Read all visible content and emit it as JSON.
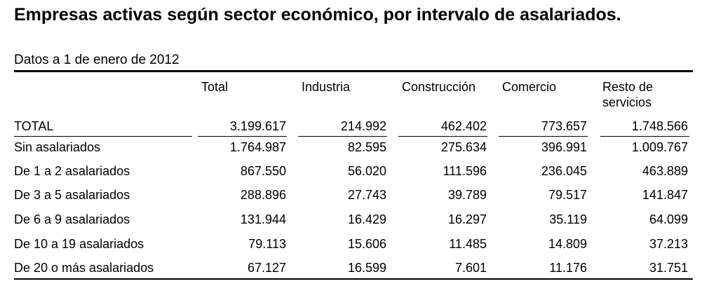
{
  "title": "Empresas activas según sector económico, por intervalo de asalariados.",
  "subtitle": "Datos a 1 de enero de 2012",
  "columns": [
    "Total",
    "Industria",
    "Construcción",
    "Comercio",
    "Resto de servicios"
  ],
  "rows": [
    {
      "label": "TOTAL",
      "values": [
        "3.199.617",
        "214.992",
        "462.402",
        "773.657",
        "1.748.566"
      ]
    },
    {
      "label": "Sin asalariados",
      "values": [
        "1.764.987",
        "82.595",
        "275.634",
        "396.991",
        "1.009.767"
      ]
    },
    {
      "label": "De 1 a 2 asalariados",
      "values": [
        "867.550",
        "56.020",
        "111.596",
        "236.045",
        "463.889"
      ]
    },
    {
      "label": "De 3 a 5 asalariados",
      "values": [
        "288.896",
        "27.743",
        "39.789",
        "79.517",
        "141.847"
      ]
    },
    {
      "label": "De 6 a 9 asalariados",
      "values": [
        "131.944",
        "16.429",
        "16.297",
        "35.119",
        "64.099"
      ]
    },
    {
      "label": "De 10 a 19 asalariados",
      "values": [
        "79.113",
        "15.606",
        "11.485",
        "14.809",
        "37.213"
      ]
    },
    {
      "label": "De 20 o más asalariados",
      "values": [
        "67.127",
        "16.599",
        "7.601",
        "11.176",
        "31.751"
      ]
    }
  ]
}
